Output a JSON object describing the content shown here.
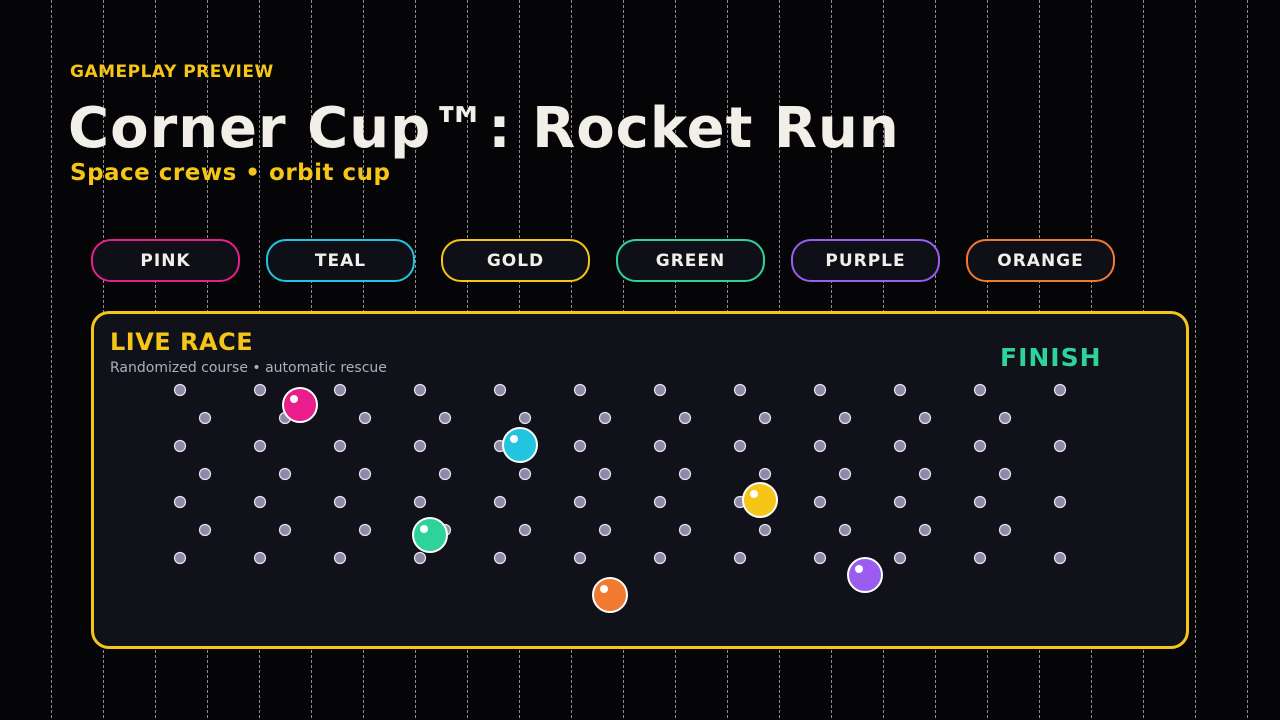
{
  "eyebrow": "GAMEPLAY PREVIEW",
  "title": "Corner Cup™: Rocket Run",
  "subtitle": "Space crews • orbit cup",
  "teams": [
    {
      "name": "PINK",
      "color": "#e91e8c"
    },
    {
      "name": "TEAL",
      "color": "#22c4e0"
    },
    {
      "name": "GOLD",
      "color": "#f5c518"
    },
    {
      "name": "GREEN",
      "color": "#2ed39a"
    },
    {
      "name": "PURPLE",
      "color": "#9b5cf0"
    },
    {
      "name": "ORANGE",
      "color": "#f07a30"
    }
  ],
  "race": {
    "title": "LIVE RACE",
    "subtitle": "Randomized course • automatic rescue",
    "finish": "FINISH"
  }
}
